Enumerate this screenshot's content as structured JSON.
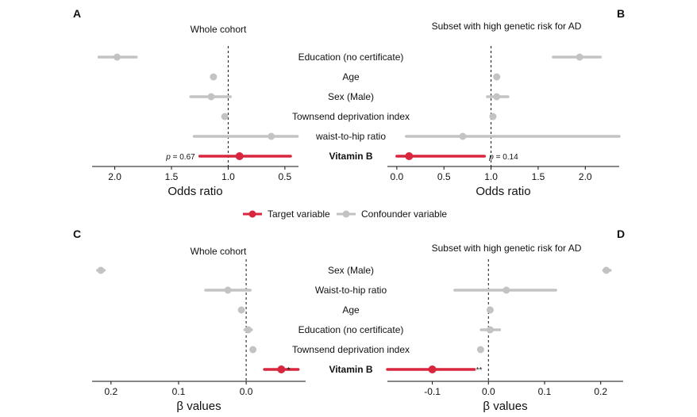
{
  "legend": {
    "target_label": "Target variable",
    "confounder_label": "Confounder variable",
    "target_color": "#d7263d",
    "confounder_color": "#c3c3c3"
  },
  "chart_data": [
    {
      "panel": "A",
      "type": "forest",
      "title": "Whole cohort",
      "xlabel": "Odds ratio",
      "x_reversed": true,
      "xlim": [
        2.2,
        0.38
      ],
      "reference_x": 1.0,
      "ticks": [
        2.0,
        1.5,
        1.0,
        0.5
      ],
      "tick_labels": [
        "2.0",
        "1.5",
        "1.0",
        "0.5"
      ],
      "annotation": "p = 0.67",
      "rows": [
        {
          "label": "Education (no certificate)",
          "estimate": 1.98,
          "lo": 1.81,
          "hi": 2.14,
          "type": "confounder"
        },
        {
          "label": "Age",
          "estimate": 1.13,
          "lo": 1.13,
          "hi": 1.13,
          "type": "confounder"
        },
        {
          "label": "Sex (Male)",
          "estimate": 1.15,
          "lo": 0.98,
          "hi": 1.33,
          "type": "confounder"
        },
        {
          "label": "Townsend deprivation index",
          "estimate": 1.03,
          "lo": 1.03,
          "hi": 1.03,
          "type": "confounder"
        },
        {
          "label": "waist-to-hip ratio",
          "estimate": 0.62,
          "lo": 0.39,
          "hi": 1.3,
          "type": "confounder"
        },
        {
          "label": "Vitamin B",
          "estimate": 0.9,
          "lo": 0.45,
          "hi": 1.25,
          "type": "target"
        }
      ]
    },
    {
      "panel": "B",
      "type": "forest",
      "title": "Subset with high genetic risk for AD",
      "xlabel": "Odds ratio",
      "x_reversed": false,
      "xlim": [
        -0.1,
        2.36
      ],
      "reference_x": 1.0,
      "ticks": [
        0.0,
        0.5,
        1.0,
        1.5,
        2.0
      ],
      "tick_labels": [
        "0.0",
        "0.5",
        "1.0",
        "1.5",
        "2.0"
      ],
      "annotation": "p = 0.14",
      "rows": [
        {
          "label": "Education (no certificate)",
          "estimate": 1.94,
          "lo": 1.66,
          "hi": 2.16,
          "type": "confounder"
        },
        {
          "label": "Age",
          "estimate": 1.06,
          "lo": 1.06,
          "hi": 1.06,
          "type": "confounder"
        },
        {
          "label": "Sex (Male)",
          "estimate": 1.06,
          "lo": 0.96,
          "hi": 1.18,
          "type": "confounder"
        },
        {
          "label": "Townsend deprivation index",
          "estimate": 1.02,
          "lo": 1.02,
          "hi": 1.02,
          "type": "confounder"
        },
        {
          "label": "waist-to-hip ratio",
          "estimate": 0.7,
          "lo": 0.1,
          "hi": 2.36,
          "type": "confounder"
        },
        {
          "label": "Vitamin B",
          "estimate": 0.13,
          "lo": 0.0,
          "hi": 0.93,
          "type": "target"
        }
      ]
    },
    {
      "panel": "C",
      "type": "forest",
      "title": "Whole cohort",
      "xlabel": "β values",
      "x_reversed": true,
      "xlim": [
        0.228,
        -0.088
      ],
      "reference_x": 0.0,
      "ticks": [
        0.2,
        0.1,
        0.0
      ],
      "tick_labels": [
        "0.2",
        "0.1",
        "0.0"
      ],
      "annotation": "*",
      "rows": [
        {
          "label": "Sex (Male)",
          "estimate": 0.215,
          "lo": 0.21,
          "hi": 0.22,
          "type": "confounder"
        },
        {
          "label": "Waist-to-hip ratio",
          "estimate": 0.027,
          "lo": -0.006,
          "hi": 0.06,
          "type": "confounder"
        },
        {
          "label": "Age",
          "estimate": 0.007,
          "lo": 0.007,
          "hi": 0.007,
          "type": "confounder"
        },
        {
          "label": "Education (no certificate)",
          "estimate": -0.003,
          "lo": -0.008,
          "hi": 0.002,
          "type": "confounder"
        },
        {
          "label": "Townsend deprivation index",
          "estimate": -0.01,
          "lo": -0.01,
          "hi": -0.01,
          "type": "confounder"
        },
        {
          "label": "Vitamin B",
          "estimate": -0.052,
          "lo": -0.077,
          "hi": -0.027,
          "type": "target"
        }
      ]
    },
    {
      "panel": "D",
      "type": "forest",
      "title": "Subset with high genetic risk for AD",
      "xlabel": "β values",
      "x_reversed": false,
      "xlim": [
        -0.18,
        0.24
      ],
      "reference_x": 0.0,
      "ticks": [
        -0.1,
        0.0,
        0.1,
        0.2
      ],
      "tick_labels": [
        "-0.1",
        "0.0",
        "0.1",
        "0.2"
      ],
      "annotation": "**",
      "rows": [
        {
          "label": "Sex (Male)",
          "estimate": 0.21,
          "lo": 0.205,
          "hi": 0.217,
          "type": "confounder"
        },
        {
          "label": "Waist-to-hip ratio",
          "estimate": 0.032,
          "lo": -0.06,
          "hi": 0.12,
          "type": "confounder"
        },
        {
          "label": "Age",
          "estimate": 0.003,
          "lo": 0.003,
          "hi": 0.003,
          "type": "confounder"
        },
        {
          "label": "Education (no certificate)",
          "estimate": 0.003,
          "lo": -0.013,
          "hi": 0.02,
          "type": "confounder"
        },
        {
          "label": "Townsend deprivation index",
          "estimate": -0.014,
          "lo": -0.014,
          "hi": -0.014,
          "type": "confounder"
        },
        {
          "label": "Vitamin B",
          "estimate": -0.1,
          "lo": -0.18,
          "hi": -0.025,
          "type": "target"
        }
      ]
    }
  ]
}
